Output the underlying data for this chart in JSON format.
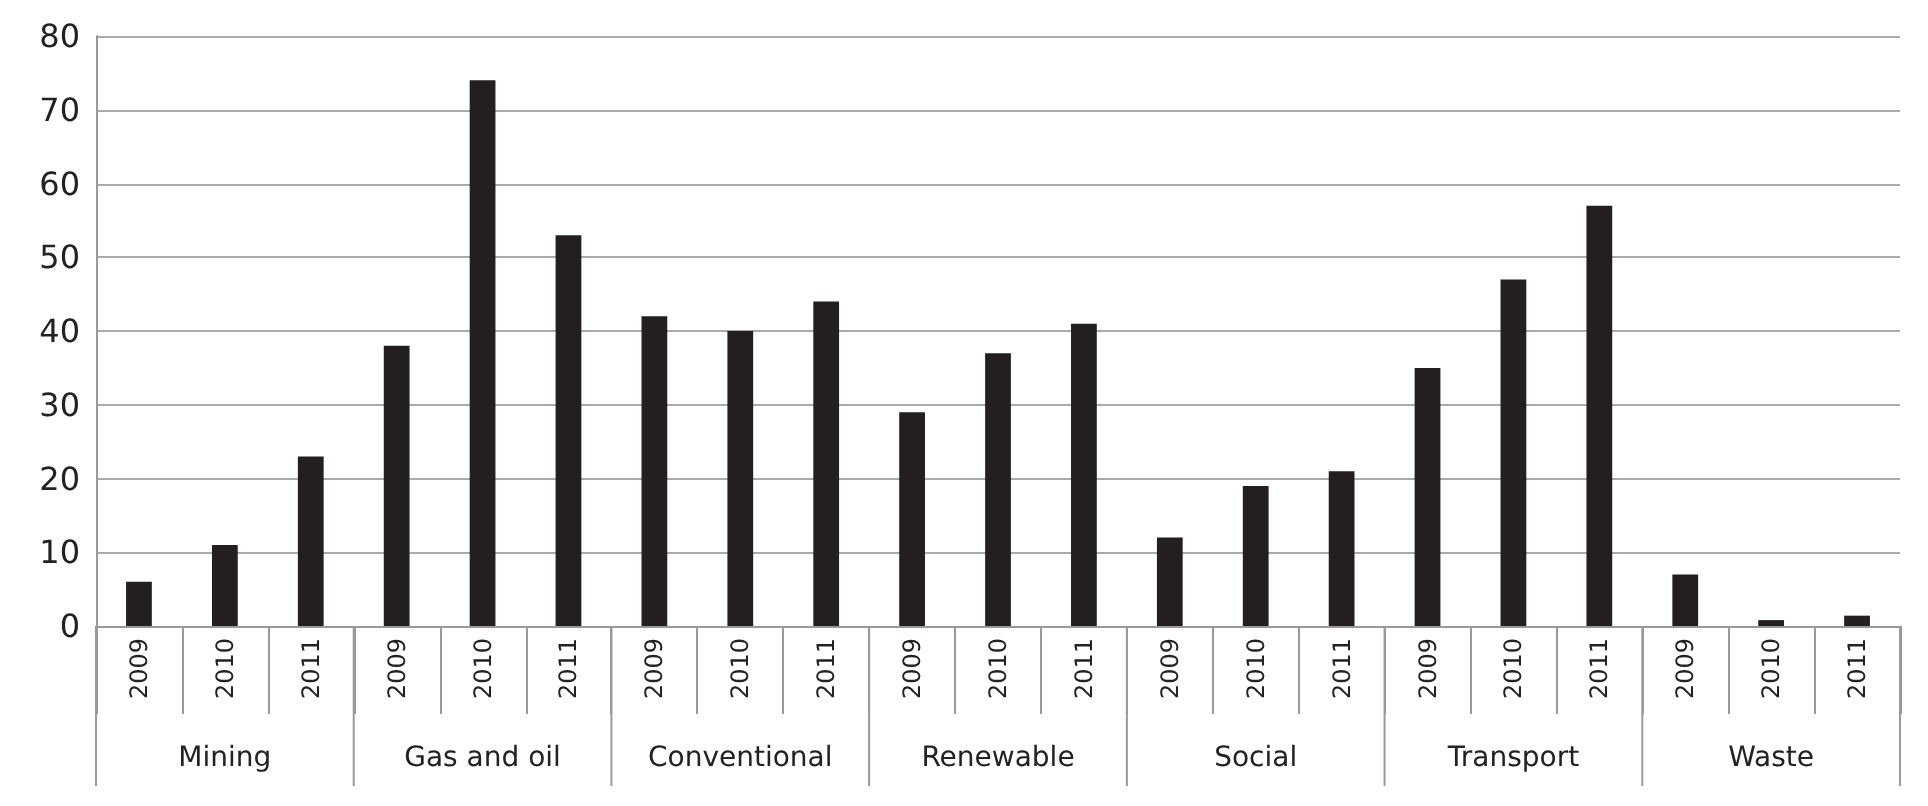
{
  "chart_data": {
    "type": "bar",
    "categories": [
      "2009",
      "2010",
      "2011",
      "2009",
      "2010",
      "2011",
      "2009",
      "2010",
      "2011",
      "2009",
      "2010",
      "2011",
      "2009",
      "2010",
      "2011",
      "2009",
      "2010",
      "2011",
      "2009",
      "2010",
      "2011"
    ],
    "values": [
      6,
      11,
      23,
      38,
      74,
      53,
      42,
      40,
      44,
      29,
      37,
      41,
      12,
      19,
      21,
      35,
      47,
      57,
      7,
      0.8,
      1.4
    ],
    "color": "#231f20",
    "annotations": [
      "Mining",
      "Gas and oil",
      "Conventional",
      "Renewable",
      "Social",
      "Transport",
      "Waste"
    ],
    "ylim": [
      0,
      80
    ],
    "yticks": [
      0,
      10,
      20,
      30,
      40,
      50,
      60,
      70,
      80
    ],
    "grid": "y"
  }
}
